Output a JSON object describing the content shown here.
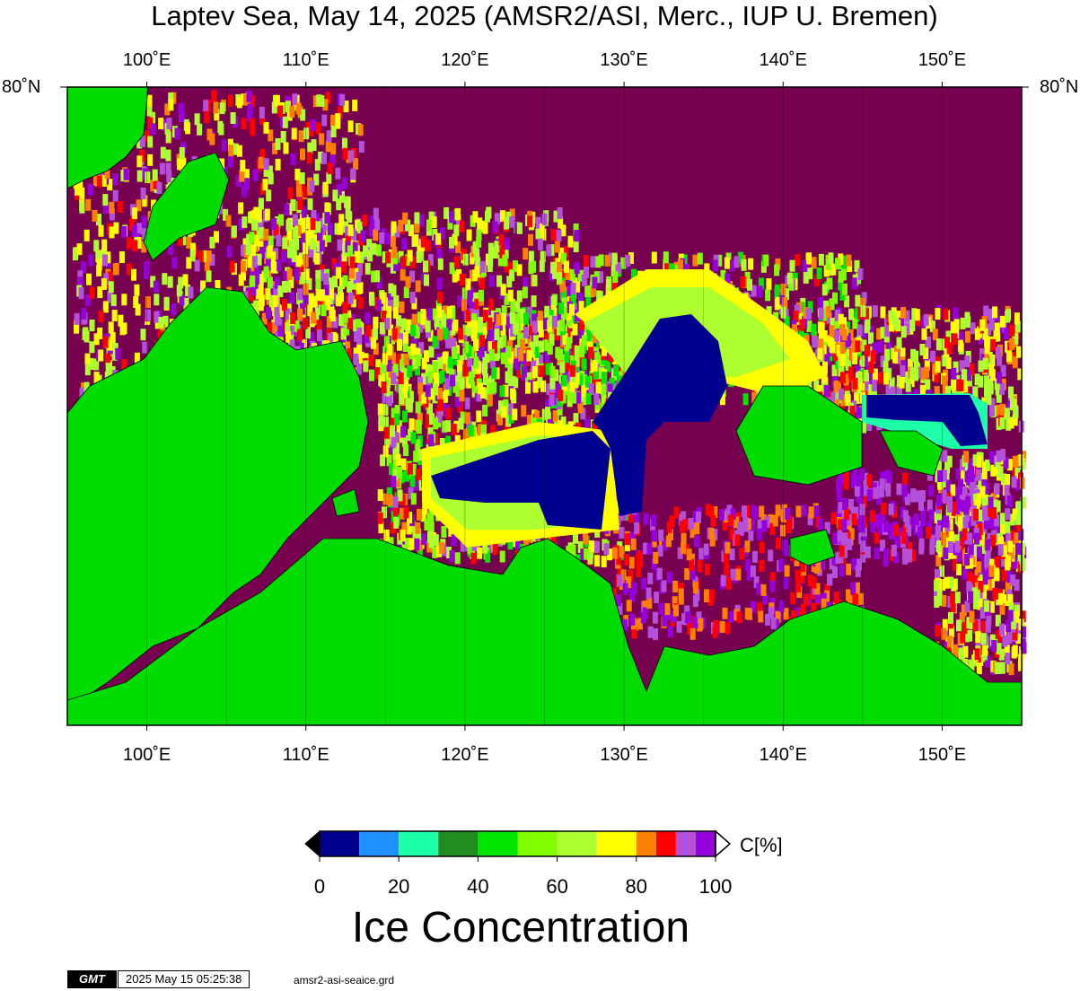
{
  "title": "Laptev Sea, May 14, 2025 (AMSR2/ASI, Merc., IUP U. Bremen)",
  "map": {
    "lon_range": [
      95,
      155
    ],
    "lon_ticks": [
      "100˚E",
      "110˚E",
      "120˚E",
      "130˚E",
      "140˚E",
      "150˚E"
    ],
    "lon_tick_values": [
      100,
      110,
      120,
      130,
      140,
      150
    ],
    "lat_label": "80˚N",
    "colors": {
      "land": "#00dc00",
      "open_water": "#000090",
      "pack_ice": "#780050",
      "frame": "#000000"
    }
  },
  "colorbar": {
    "unit": "C[%]",
    "title": "Ice Concentration",
    "ticks": [
      "0",
      "20",
      "40",
      "60",
      "80",
      "100"
    ],
    "min": 0,
    "max": 100,
    "segments": [
      {
        "from": 0,
        "to": 10,
        "color": "#000090"
      },
      {
        "from": 10,
        "to": 20,
        "color": "#1e90ff"
      },
      {
        "from": 20,
        "to": 30,
        "color": "#1effaa"
      },
      {
        "from": 30,
        "to": 40,
        "color": "#228b22"
      },
      {
        "from": 40,
        "to": 50,
        "color": "#00e600"
      },
      {
        "from": 50,
        "to": 60,
        "color": "#7fff00"
      },
      {
        "from": 60,
        "to": 70,
        "color": "#adff2f"
      },
      {
        "from": 70,
        "to": 80,
        "color": "#ffff00"
      },
      {
        "from": 80,
        "to": 85,
        "color": "#ff8000"
      },
      {
        "from": 85,
        "to": 90,
        "color": "#ff0000"
      },
      {
        "from": 90,
        "to": 95,
        "color": "#b450dc"
      },
      {
        "from": 95,
        "to": 100,
        "color": "#9600dc"
      }
    ],
    "below_color": "#000000",
    "above_color": "#ffffff"
  },
  "footer": {
    "logo": "GMT",
    "timestamp": "2025 May 15 05:25:38",
    "grid_file": "amsr2-asi-seaice.grd"
  }
}
